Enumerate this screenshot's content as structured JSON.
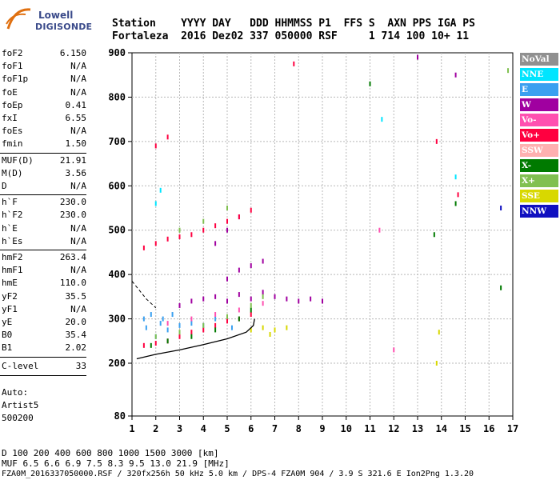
{
  "logo": {
    "line1": "Lowell",
    "line2": "DIGISONDE"
  },
  "header": {
    "line1": "Station    YYYY DAY   DDD HHMMSS P1  FFS S  AXN PPS IGA PS",
    "line2": "Fortaleza  2016 Dez02 337 050000 RSF     1 714 100 10+ 11"
  },
  "params_top": [
    {
      "name": "foF2",
      "value": "6.150"
    },
    {
      "name": "foF1",
      "value": "N/A"
    },
    {
      "name": "foF1p",
      "value": "N/A"
    },
    {
      "name": "foE",
      "value": "N/A"
    },
    {
      "name": "foEp",
      "value": "0.41"
    },
    {
      "name": "fxI",
      "value": "6.55"
    },
    {
      "name": "foEs",
      "value": "N/A"
    },
    {
      "name": "fmin",
      "value": "1.50"
    }
  ],
  "params_muf": [
    {
      "name": "MUF(D)",
      "value": "21.91"
    },
    {
      "name": "M(D)",
      "value": "3.56"
    },
    {
      "name": "D",
      "value": "N/A"
    }
  ],
  "params_h": [
    {
      "name": "h`F",
      "value": "230.0"
    },
    {
      "name": "h`F2",
      "value": "230.0"
    },
    {
      "name": "h`E",
      "value": "N/A"
    },
    {
      "name": "h`Es",
      "value": "N/A"
    }
  ],
  "params_hm": [
    {
      "name": "hmF2",
      "value": "263.4"
    },
    {
      "name": "hmF1",
      "value": "N/A"
    },
    {
      "name": "hmE",
      "value": "110.0"
    },
    {
      "name": "yF2",
      "value": "35.5"
    },
    {
      "name": "yF1",
      "value": "N/A"
    },
    {
      "name": "yE",
      "value": "20.0"
    },
    {
      "name": "B0",
      "value": "35.4"
    },
    {
      "name": "B1",
      "value": "2.02"
    }
  ],
  "clevel": {
    "name": "C-level",
    "value": "33"
  },
  "auto": {
    "line1": "Auto:",
    "line2": "Artist5",
    "line3": "500200"
  },
  "legend": [
    {
      "label": "NoVal",
      "color": "#909090",
      "text_color": "#ffffff"
    },
    {
      "label": "NNE",
      "color": "#00e5ff",
      "text_color": "#ffffff"
    },
    {
      "label": "E",
      "color": "#3aa0f0",
      "text_color": "#ffffff"
    },
    {
      "label": "W",
      "color": "#a000a0",
      "text_color": "#ffffff"
    },
    {
      "label": "Vo-",
      "color": "#ff50b0",
      "text_color": "#ffffff"
    },
    {
      "label": "Vo+",
      "color": "#ff0040",
      "text_color": "#ffffff"
    },
    {
      "label": "SSW",
      "color": "#ffb0b0",
      "text_color": "#ffffff"
    },
    {
      "label": "X-",
      "color": "#007a00",
      "text_color": "#ffffff"
    },
    {
      "label": "X+",
      "color": "#80c050",
      "text_color": "#ffffff"
    },
    {
      "label": "SSE",
      "color": "#d8d800",
      "text_color": "#ffffff"
    },
    {
      "label": "NNW",
      "color": "#1010c0",
      "text_color": "#ffffff"
    }
  ],
  "footer": {
    "d_row": "D      100  200  400  600  800 1000 1500 3000 [km]",
    "muf_row": "MUF    6.5  6.6  6.9  7.5  8.3  9.5 13.0 21.9 [MHz]",
    "file_row": "FZA0M_2016337050000.RSF / 320fx256h 50 kHz 5.0 km / DPS-4 FZA0M 904 / 3.9 S 321.6 E  Ion2Png 1.3.20"
  },
  "chart_data": {
    "type": "scatter",
    "title": "",
    "xlabel": "",
    "ylabel": "",
    "xlim": [
      1,
      17
    ],
    "ylim": [
      80,
      900
    ],
    "x_ticks": [
      1,
      2,
      3,
      4,
      5,
      6,
      7,
      8,
      9,
      10,
      11,
      12,
      13,
      14,
      15,
      16,
      17
    ],
    "y_ticks": [
      80,
      200,
      300,
      400,
      500,
      600,
      700,
      800,
      900
    ],
    "grid": true,
    "legend_position": "right",
    "profile_curve": {
      "color": "#000000",
      "points": [
        [
          1.2,
          210
        ],
        [
          2,
          220
        ],
        [
          3,
          230
        ],
        [
          4,
          242
        ],
        [
          5,
          255
        ],
        [
          5.8,
          270
        ],
        [
          6.1,
          285
        ],
        [
          6.15,
          300
        ]
      ]
    },
    "dashed_curve": {
      "color": "#000000",
      "points": [
        [
          1.0,
          385
        ],
        [
          1.3,
          365
        ],
        [
          1.6,
          345
        ],
        [
          2.0,
          325
        ]
      ]
    },
    "series": [
      {
        "name": "E",
        "color": "#3aa0f0",
        "points": [
          [
            1.5,
            300
          ],
          [
            2.2,
            290
          ],
          [
            2.5,
            275
          ],
          [
            3.0,
            285
          ],
          [
            3.5,
            290
          ],
          [
            4.0,
            285
          ],
          [
            4.5,
            300
          ],
          [
            1.8,
            310
          ],
          [
            2.0,
            260
          ],
          [
            2.3,
            300
          ],
          [
            1.6,
            280
          ],
          [
            2.7,
            310
          ],
          [
            5.2,
            280
          ]
        ]
      },
      {
        "name": "W",
        "color": "#a000a0",
        "points": [
          [
            3.0,
            330
          ],
          [
            3.5,
            340
          ],
          [
            4.0,
            345
          ],
          [
            4.5,
            350
          ],
          [
            5.0,
            340
          ],
          [
            5.5,
            355
          ],
          [
            6.0,
            345
          ],
          [
            6.5,
            360
          ],
          [
            7.0,
            350
          ],
          [
            7.5,
            345
          ],
          [
            8.0,
            340
          ],
          [
            8.5,
            345
          ],
          [
            9.0,
            340
          ],
          [
            5.0,
            390
          ],
          [
            5.5,
            410
          ],
          [
            6.0,
            420
          ],
          [
            6.5,
            430
          ],
          [
            4.5,
            470
          ],
          [
            5.0,
            500
          ],
          [
            5.5,
            530
          ],
          [
            13.0,
            890
          ],
          [
            14.6,
            850
          ]
        ]
      },
      {
        "name": "Vo+",
        "color": "#ff0040",
        "points": [
          [
            1.5,
            460
          ],
          [
            2.0,
            470
          ],
          [
            2.5,
            480
          ],
          [
            3.0,
            485
          ],
          [
            3.5,
            490
          ],
          [
            4.0,
            500
          ],
          [
            4.5,
            510
          ],
          [
            5.0,
            520
          ],
          [
            5.5,
            530
          ],
          [
            6.0,
            545
          ],
          [
            1.5,
            240
          ],
          [
            2.0,
            245
          ],
          [
            2.5,
            250
          ],
          [
            3.0,
            260
          ],
          [
            3.5,
            270
          ],
          [
            4.0,
            275
          ],
          [
            4.5,
            285
          ],
          [
            5.0,
            295
          ],
          [
            5.5,
            300
          ],
          [
            6.0,
            310
          ],
          [
            2.0,
            690
          ],
          [
            2.5,
            710
          ],
          [
            7.8,
            875
          ],
          [
            13.8,
            700
          ],
          [
            14.7,
            580
          ]
        ]
      },
      {
        "name": "X-",
        "color": "#007a00",
        "points": [
          [
            1.8,
            240
          ],
          [
            2.5,
            250
          ],
          [
            3.5,
            260
          ],
          [
            4.5,
            275
          ],
          [
            5.5,
            300
          ],
          [
            6.0,
            320
          ],
          [
            11.0,
            830
          ],
          [
            13.7,
            490
          ],
          [
            14.6,
            560
          ],
          [
            16.5,
            370
          ]
        ]
      },
      {
        "name": "X+",
        "color": "#80c050",
        "points": [
          [
            2.0,
            260
          ],
          [
            3.0,
            270
          ],
          [
            4.0,
            285
          ],
          [
            5.0,
            305
          ],
          [
            6.0,
            330
          ],
          [
            6.5,
            350
          ],
          [
            3.0,
            500
          ],
          [
            4.0,
            520
          ],
          [
            5.0,
            550
          ],
          [
            16.8,
            860
          ]
        ]
      },
      {
        "name": "SSE",
        "color": "#d8d800",
        "points": [
          [
            6.0,
            275
          ],
          [
            6.5,
            280
          ],
          [
            7.0,
            275
          ],
          [
            7.5,
            280
          ],
          [
            6.8,
            265
          ],
          [
            13.8,
            200
          ],
          [
            13.9,
            270
          ]
        ]
      },
      {
        "name": "Vo-",
        "color": "#ff50b0",
        "points": [
          [
            2.5,
            290
          ],
          [
            3.5,
            300
          ],
          [
            4.5,
            310
          ],
          [
            5.5,
            320
          ],
          [
            6.5,
            335
          ],
          [
            11.4,
            500
          ],
          [
            12.0,
            230
          ]
        ]
      },
      {
        "name": "NNE",
        "color": "#00e5ff",
        "points": [
          [
            2.0,
            560
          ],
          [
            2.2,
            590
          ],
          [
            11.5,
            750
          ],
          [
            14.6,
            620
          ]
        ]
      },
      {
        "name": "NNW",
        "color": "#1010c0",
        "points": [
          [
            16.5,
            550
          ]
        ]
      }
    ]
  }
}
